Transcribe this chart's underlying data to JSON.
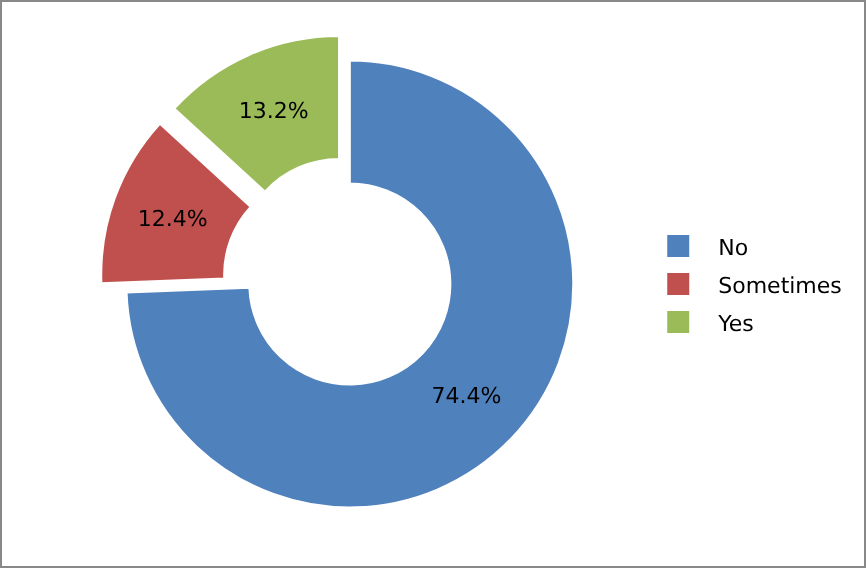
{
  "chart_data": {
    "type": "donut",
    "categories": [
      "No",
      "Sometimes",
      "Yes"
    ],
    "values": [
      74.4,
      12.4,
      13.2
    ],
    "colors": [
      "#4f81bd",
      "#c0504d",
      "#9bbb59"
    ],
    "value_labels": [
      "74.4%",
      "12.4%",
      "13.2%"
    ],
    "legend": "right"
  }
}
